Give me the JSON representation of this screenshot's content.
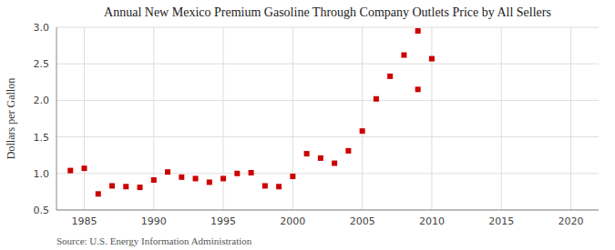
{
  "chart_data": {
    "type": "scatter",
    "title": "Annual New Mexico Premium Gasoline Through Company Outlets Price by All Sellers",
    "ylabel": "Dollars per Gallon",
    "source": "Source: U.S. Energy Information Administration",
    "x": [
      1984,
      1985,
      1986,
      1987,
      1988,
      1989,
      1990,
      1991,
      1992,
      1993,
      1994,
      1995,
      1996,
      1997,
      1998,
      1999,
      2000,
      2001,
      2002,
      2003,
      2004,
      2005,
      2006,
      2007,
      2008,
      2009,
      2009,
      2010
    ],
    "values": [
      1.04,
      1.07,
      0.72,
      0.83,
      0.82,
      0.81,
      0.91,
      1.02,
      0.95,
      0.93,
      0.88,
      0.93,
      1.0,
      1.01,
      0.83,
      0.82,
      0.96,
      1.27,
      1.21,
      1.14,
      1.31,
      1.58,
      2.02,
      2.33,
      2.62,
      2.95,
      2.15,
      2.57
    ],
    "color": "#cc0000",
    "marker": "square",
    "xlim": [
      1983,
      2022
    ],
    "ylim": [
      0.5,
      3.0
    ],
    "xticks": [
      1985,
      1990,
      1995,
      2000,
      2005,
      2010,
      2015,
      2020
    ],
    "yticks": [
      0.5,
      {
        "value": 1.0,
        "label": "1.0"
      },
      1.5,
      {
        "value": 2.0,
        "label": "2.0"
      },
      2.5,
      {
        "value": 3.0,
        "label": "3.0"
      }
    ],
    "grid": true
  }
}
